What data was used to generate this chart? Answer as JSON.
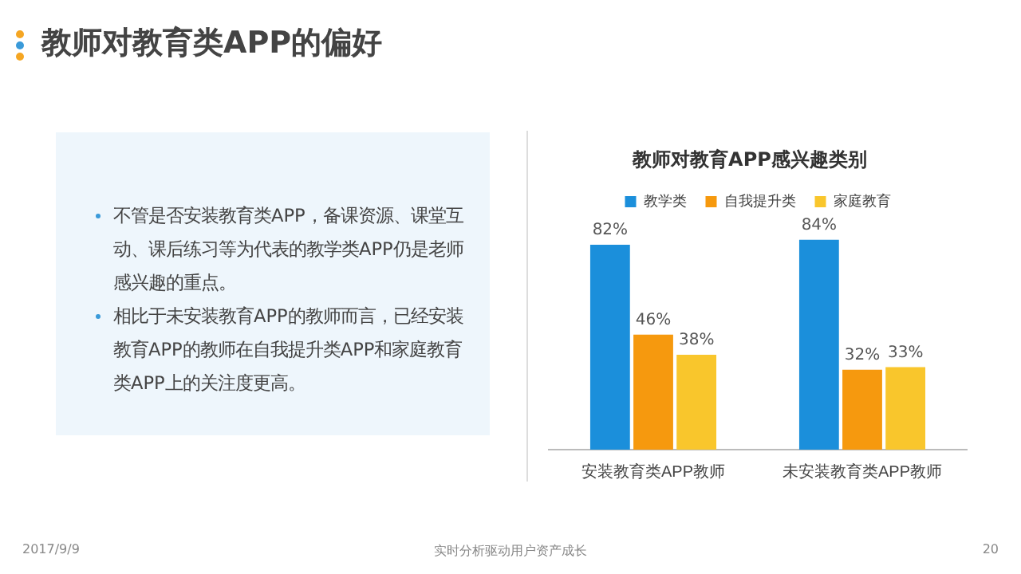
{
  "chart_data": {
    "type": "bar",
    "title": "教师对教育类APP的偏好",
    "subtitle": "教师对教育APP感兴趣类别",
    "categories": [
      "安装教育类APP教师",
      "未安装教育类APP教师"
    ],
    "series": [
      {
        "name": "教学类",
        "color": "#1b8fdb",
        "values": [
          82,
          84
        ],
        "value_labels": [
          "82%",
          "84%"
        ]
      },
      {
        "name": "自我提升类",
        "color": "#f6990e",
        "values": [
          46,
          32
        ],
        "value_labels": [
          "46%",
          "32%"
        ]
      },
      {
        "name": "家庭教育",
        "color": "#f9c62c",
        "values": [
          38,
          33
        ],
        "value_labels": [
          "38%",
          "33%"
        ]
      }
    ],
    "legend": "top",
    "grid": false,
    "annotations": [
      "不管是否安装教育类APP，备课资源、课堂互动、课后练习等为代表的教学类APP仍是老师感兴趣的重点。",
      "相比于未安装教育APP的教师而言，已经安装教育APP的教师在自我提升类APP和家庭教育类APP上的关注度更高。",
      "2017/9/9",
      "实时分析驱动用户资产成长",
      "20"
    ]
  }
}
